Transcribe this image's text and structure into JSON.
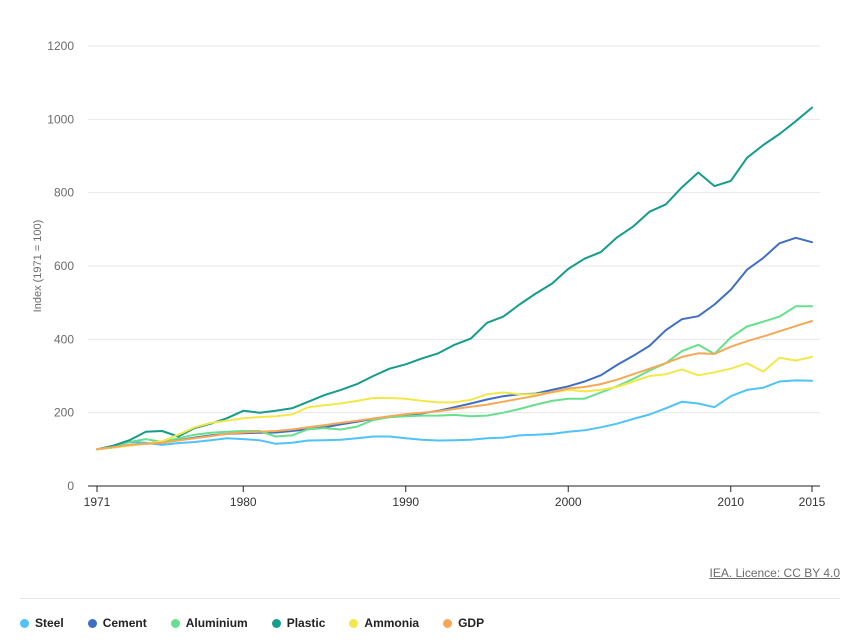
{
  "chart_data": {
    "type": "line",
    "title": "",
    "ylabel": "Index (1971 = 100)",
    "xlabel": "",
    "xlim": [
      1971,
      2015
    ],
    "ylim": [
      0,
      1200
    ],
    "yticks": [
      0,
      200,
      400,
      600,
      800,
      1000,
      1200
    ],
    "xticks": [
      1971,
      1980,
      1990,
      2000,
      2010,
      2015
    ],
    "grid": "horizontal",
    "legend_position": "bottom",
    "x": [
      1971,
      1972,
      1973,
      1974,
      1975,
      1976,
      1977,
      1978,
      1979,
      1980,
      1981,
      1982,
      1983,
      1984,
      1985,
      1986,
      1987,
      1988,
      1989,
      1990,
      1991,
      1992,
      1993,
      1994,
      1995,
      1996,
      1997,
      1998,
      1999,
      2000,
      2001,
      2002,
      2003,
      2004,
      2005,
      2006,
      2007,
      2008,
      2009,
      2010,
      2011,
      2012,
      2013,
      2014,
      2015
    ],
    "series": [
      {
        "name": "Steel",
        "color": "#4fc3f7",
        "values": [
          100,
          108,
          120,
          118,
          112,
          117,
          120,
          125,
          130,
          128,
          125,
          115,
          118,
          124,
          125,
          126,
          130,
          135,
          135,
          130,
          126,
          124,
          125,
          126,
          130,
          132,
          138,
          140,
          142,
          148,
          152,
          160,
          170,
          183,
          195,
          212,
          230,
          225,
          215,
          245,
          262,
          268,
          285,
          288,
          287
        ]
      },
      {
        "name": "Cement",
        "color": "#3f6fc5",
        "values": [
          100,
          105,
          112,
          115,
          118,
          125,
          132,
          138,
          142,
          144,
          145,
          146,
          150,
          155,
          160,
          168,
          175,
          183,
          188,
          192,
          198,
          205,
          215,
          225,
          236,
          245,
          250,
          252,
          262,
          272,
          285,
          302,
          330,
          355,
          382,
          425,
          455,
          463,
          495,
          535,
          590,
          622,
          662,
          677,
          665
        ]
      },
      {
        "name": "Aluminium",
        "color": "#66e08c",
        "values": [
          100,
          110,
          120,
          128,
          120,
          130,
          140,
          145,
          148,
          150,
          150,
          135,
          138,
          155,
          158,
          154,
          162,
          180,
          188,
          190,
          192,
          192,
          194,
          190,
          192,
          200,
          210,
          222,
          232,
          238,
          238,
          255,
          272,
          292,
          315,
          335,
          368,
          385,
          360,
          405,
          435,
          448,
          462,
          490,
          490
        ]
      },
      {
        "name": "Plastic",
        "color": "#159c8a",
        "values": [
          100,
          110,
          125,
          148,
          150,
          135,
          158,
          170,
          185,
          205,
          200,
          205,
          212,
          230,
          248,
          262,
          278,
          300,
          320,
          332,
          348,
          362,
          385,
          402,
          445,
          462,
          495,
          525,
          552,
          592,
          620,
          638,
          678,
          708,
          748,
          768,
          815,
          855,
          818,
          832,
          895,
          930,
          960,
          995,
          1032
        ]
      },
      {
        "name": "Ammonia",
        "color": "#f3e84a",
        "values": [
          100,
          105,
          110,
          115,
          122,
          140,
          160,
          172,
          178,
          185,
          188,
          190,
          195,
          215,
          220,
          225,
          232,
          240,
          240,
          238,
          232,
          228,
          228,
          235,
          250,
          255,
          250,
          250,
          255,
          262,
          258,
          262,
          270,
          285,
          300,
          305,
          318,
          302,
          310,
          320,
          335,
          312,
          350,
          342,
          352
        ]
      },
      {
        "name": "GDP",
        "color": "#f5a957",
        "values": [
          100,
          106,
          112,
          115,
          118,
          124,
          130,
          136,
          142,
          146,
          148,
          150,
          154,
          160,
          166,
          172,
          178,
          184,
          190,
          196,
          200,
          204,
          210,
          216,
          222,
          230,
          238,
          246,
          256,
          266,
          270,
          278,
          290,
          305,
          320,
          335,
          352,
          362,
          360,
          380,
          395,
          408,
          422,
          436,
          450
        ]
      }
    ]
  },
  "credit_text": "IEA. Licence: CC BY 4.0"
}
